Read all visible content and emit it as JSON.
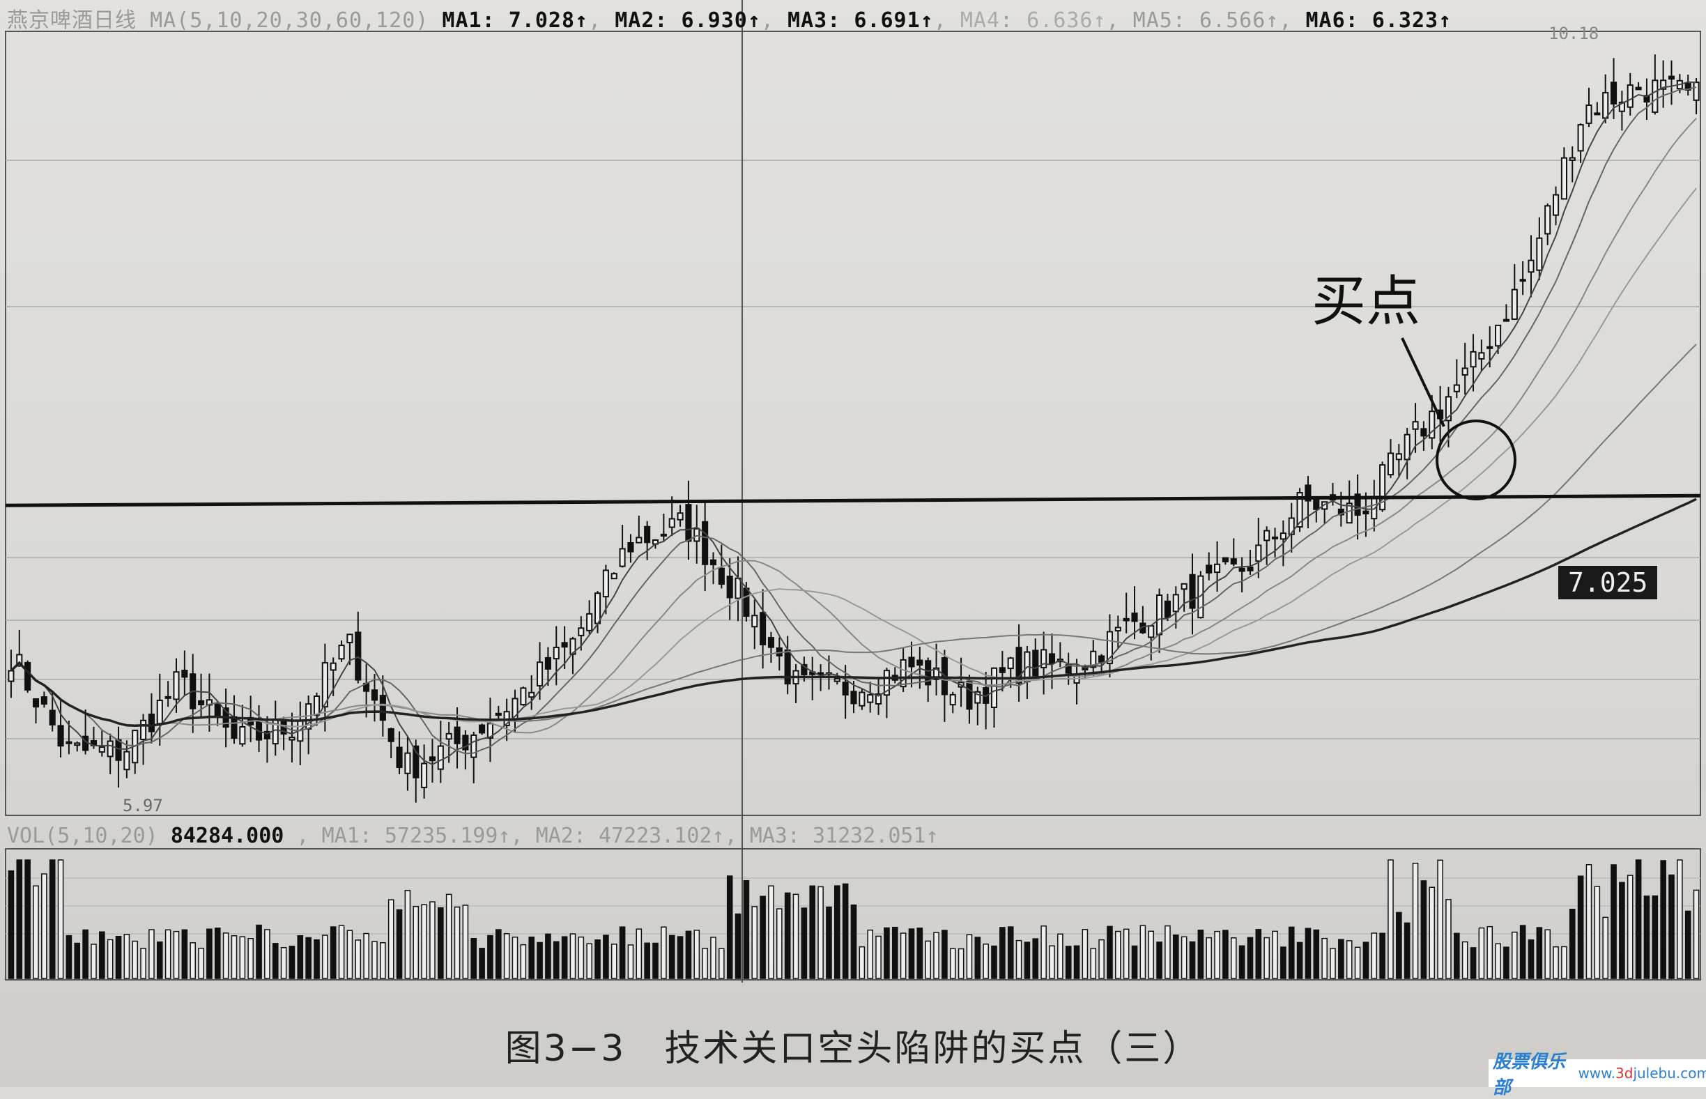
{
  "header": {
    "title": "燕京啤酒日线",
    "ma_params": "MA(5,10,20,30,60,120)",
    "ma": [
      {
        "label": "MA1",
        "value": "7.028↑"
      },
      {
        "label": "MA2",
        "value": "6.930↑"
      },
      {
        "label": "MA3",
        "value": "6.691↑"
      },
      {
        "label": "MA4",
        "value": "6.636↑"
      },
      {
        "label": "MA5",
        "value": "6.566↑"
      },
      {
        "label": "MA6",
        "value": "6.323↑"
      }
    ]
  },
  "volume_header": {
    "params": "VOL(5,10,20)",
    "value": "84284.000",
    "ma": [
      {
        "label": "MA1",
        "value": "57235.199↑"
      },
      {
        "label": "MA2",
        "value": "47223.102↑"
      },
      {
        "label": "MA3",
        "value": "31232.051↑"
      }
    ]
  },
  "price_tag": "7.025",
  "high_label": "10.18",
  "low_label": "5.97",
  "annotation": "买点",
  "caption": "图3−3　技术关口空头陷阱的买点（三）",
  "watermark": {
    "brand": "股票俱乐部",
    "url_pre": "www.",
    "url_mid": "3d",
    "url_post": "julebu.com"
  },
  "chart_data": {
    "type": "candlestick",
    "title": "燕京啤酒日线",
    "ylim": [
      5.97,
      10.18
    ],
    "resistance_level": 7.6,
    "approx_close_path": [
      6.79,
      6.26,
      6.26,
      6.64,
      6.31,
      6.4,
      6.85,
      6.17,
      6.31,
      6.55,
      6.85,
      7.39,
      7.5,
      7.09,
      6.61,
      6.61,
      6.73,
      6.55,
      6.73,
      6.73,
      6.97,
      7.12,
      7.27,
      7.62,
      7.56,
      7.98,
      8.34,
      8.87,
      9.76,
      9.88,
      9.82
    ],
    "colors": {
      "candle": "#111111",
      "ma": "#777777",
      "background": "#dcdad6"
    }
  }
}
